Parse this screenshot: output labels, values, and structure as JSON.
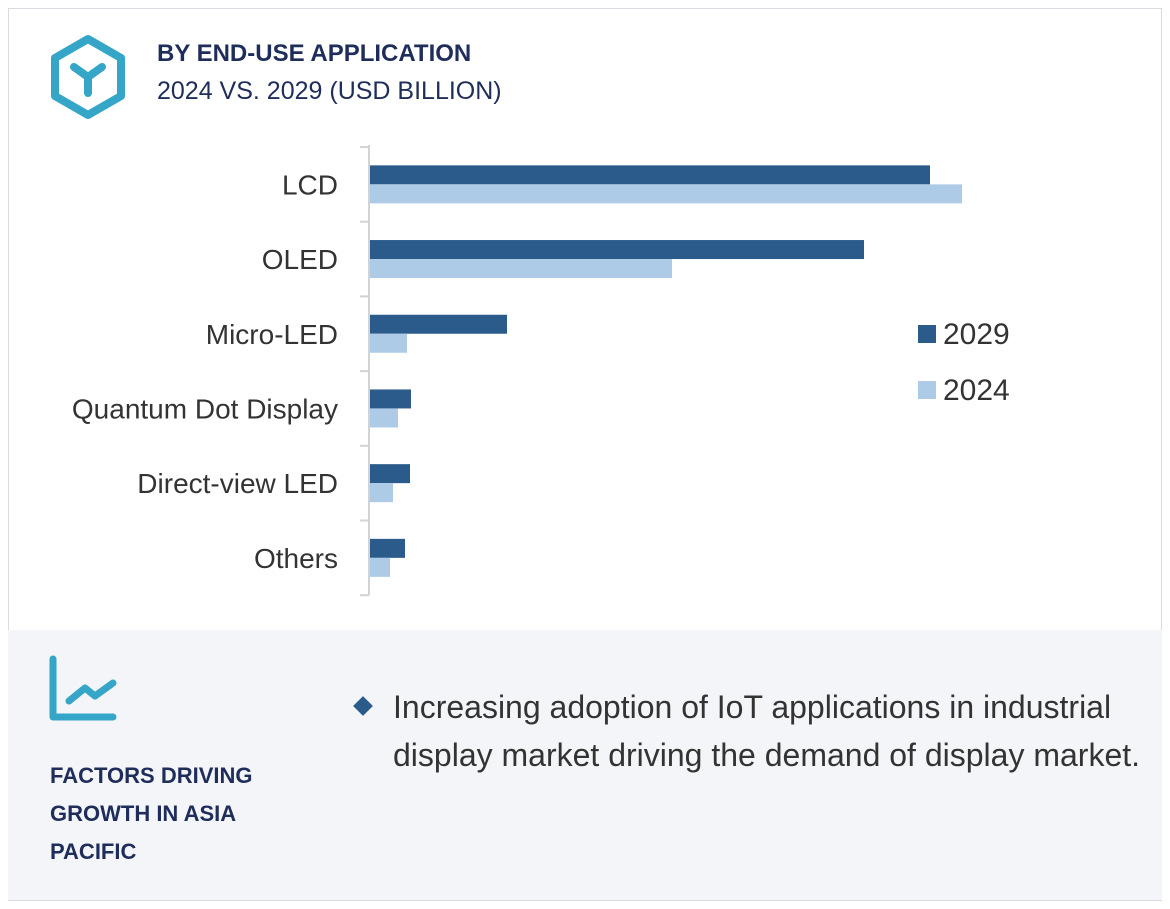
{
  "header": {
    "title": "BY END-USE APPLICATION",
    "subtitle": "2024 VS. 2029 (USD BILLION)",
    "logo_icon": "hexagon-y-logo"
  },
  "chart_data": {
    "type": "bar",
    "orientation": "horizontal",
    "title": "BY END-USE APPLICATION 2024 VS. 2029 (USD BILLION)",
    "categories": [
      "LCD",
      "OLED",
      "Micro-LED",
      "Quantum Dot Display",
      "Direct-view LED",
      "Others"
    ],
    "series": [
      {
        "name": "2029",
        "color": "#2b5b8a",
        "values": [
          56,
          49.4,
          13.7,
          4.1,
          4.0,
          3.5
        ]
      },
      {
        "name": "2024",
        "color": "#adcbe7",
        "values": [
          59.2,
          30.2,
          3.7,
          2.8,
          2.3,
          2.0
        ]
      }
    ],
    "units": "relative (no axis scale shown)",
    "xlim": [
      0,
      60
    ],
    "grid": false,
    "legend_position": "right"
  },
  "factors": {
    "heading": "FACTORS DRIVING GROWTH IN ASIA PACIFIC",
    "icon": "trend-chart-icon",
    "bullets": [
      "Increasing adoption of IoT applications in industrial display market driving the demand of display market."
    ]
  }
}
